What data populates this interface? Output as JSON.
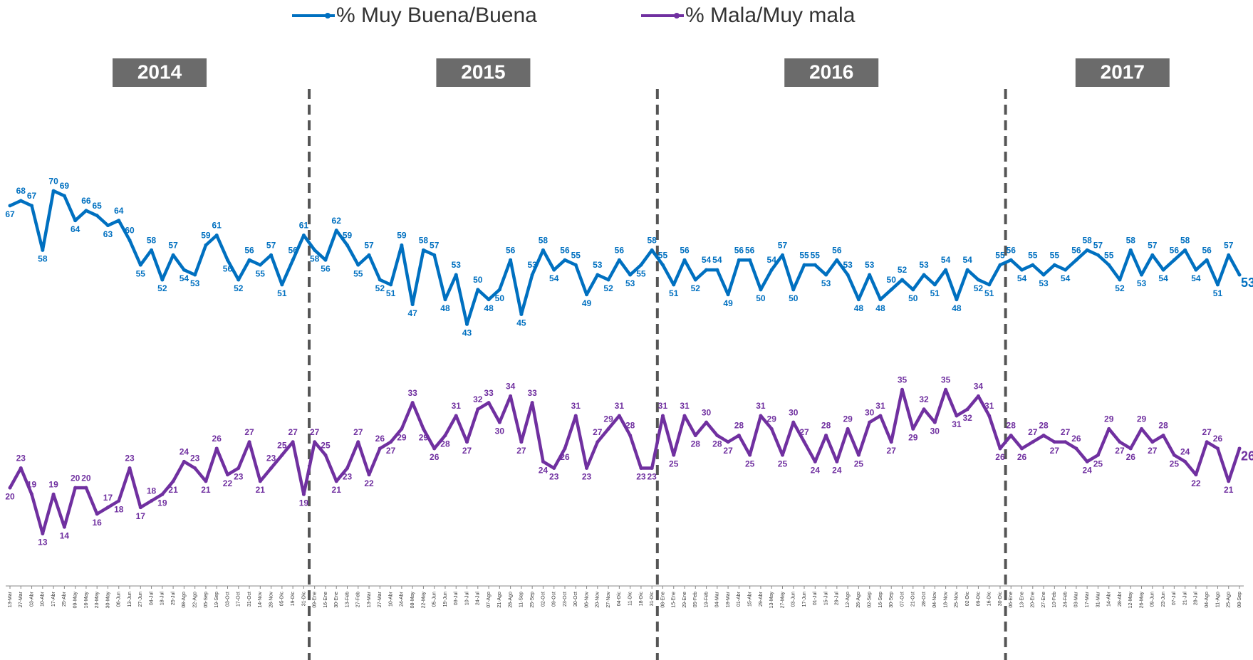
{
  "chart_data": {
    "type": "line",
    "legend": "top",
    "year_labels": [
      "2014",
      "2015",
      "2016",
      "2017"
    ],
    "ylim": [
      -10,
      100
    ],
    "y2lim": [
      5,
      88
    ],
    "categories": [
      "13-Mar",
      "27-Mar",
      "03-Abr",
      "10-Abr",
      "17-Abr",
      "25-Abr",
      "09-May",
      "16-May",
      "23-May",
      "30-May",
      "06-Jun",
      "13-Jun",
      "27-Jun",
      "04-Jul",
      "18-Jul",
      "25-Jul",
      "08-Ago",
      "22-Ago",
      "05-Sep",
      "19-Sep",
      "03-Oct",
      "17-Oct",
      "31-Oct",
      "14-Nov",
      "28-Nov",
      "05-Dic",
      "19-Dic",
      "31-Dic",
      "09-Ene",
      "16-Ene",
      "30-Ene",
      "13-Feb",
      "27-Feb",
      "13-Mar",
      "27-Mar",
      "10-Abr",
      "24-Abr",
      "08-May",
      "22-May",
      "05-Jun",
      "19-Jun",
      "03-Jul",
      "10-Jul",
      "24-Jul",
      "07-Ago",
      "21-Ago",
      "28-Ago",
      "11-Sep",
      "25-Sep",
      "02-Oct",
      "09-Oct",
      "23-Oct",
      "30-Oct",
      "06-Nov",
      "20-Nov",
      "27-Nov",
      "04-Dic",
      "11-Dic",
      "18-Dic",
      "31-Dic",
      "08-Ene",
      "15-Ene",
      "29-Ene",
      "05-Feb",
      "19-Feb",
      "04-Mar",
      "18-Mar",
      "01-Abr",
      "15-Abr",
      "29-Abr",
      "13-May",
      "27-May",
      "03-Jun",
      "17-Jun",
      "01-Jul",
      "15-Jul",
      "29-Jul",
      "12-Ago",
      "26-Ago",
      "02-Sep",
      "16-Sep",
      "30-Sep",
      "07-Oct",
      "21-Oct",
      "28-Oct",
      "04-Nov",
      "18-Nov",
      "25-Nov",
      "02-Dic",
      "09-Dic",
      "16-Dic",
      "30-Dic",
      "06-Ene",
      "13-Ene",
      "20-Ene",
      "27-Ene",
      "10-Feb",
      "24-Feb",
      "03-Mar",
      "17-Mar",
      "31-Mar",
      "14-Abr",
      "28-Abr",
      "12-May",
      "26-May",
      "09-Jun",
      "23-Jun",
      "07-Jul",
      "21-Jul",
      "28-Jul",
      "04-Ago",
      "11-Ago",
      "25-Ago",
      "08-Sep"
    ],
    "series": [
      {
        "name": "% Muy Buena/Buena",
        "color": "#0070c0",
        "values": [
          67,
          68,
          67,
          58,
          70,
          69,
          64,
          66,
          65,
          63,
          64,
          60,
          55,
          58,
          52,
          57,
          54,
          53,
          59,
          61,
          56,
          52,
          56,
          55,
          57,
          51,
          56,
          61,
          58,
          56,
          62,
          59,
          55,
          57,
          52,
          51,
          59,
          47,
          58,
          57,
          48,
          53,
          43,
          50,
          48,
          50,
          56,
          45,
          53,
          58,
          54,
          56,
          55,
          49,
          53,
          52,
          56,
          53,
          55,
          58,
          55,
          51,
          56,
          52,
          54,
          54,
          49,
          56,
          56,
          50,
          54,
          57,
          50,
          55,
          55,
          53,
          56,
          53,
          48,
          53,
          48,
          50,
          52,
          50,
          53,
          51,
          54,
          48,
          54,
          52,
          51,
          55,
          56,
          54,
          55,
          53,
          55,
          54,
          56,
          58,
          57,
          55,
          52,
          58,
          53,
          57,
          54,
          56,
          58,
          54,
          56,
          51,
          57,
          53
        ]
      },
      {
        "name": "% Mala/Muy mala",
        "color": "#7030a0",
        "axis": "y2",
        "values": [
          20,
          23,
          19,
          13,
          19,
          14,
          20,
          20,
          16,
          17,
          18,
          23,
          17,
          18,
          19,
          21,
          24,
          23,
          21,
          26,
          22,
          23,
          27,
          21,
          23,
          25,
          27,
          19,
          27,
          25,
          21,
          23,
          27,
          22,
          26,
          27,
          29,
          33,
          29,
          26,
          28,
          31,
          27,
          32,
          33,
          30,
          34,
          27,
          33,
          24,
          23,
          26,
          31,
          23,
          27,
          29,
          31,
          28,
          23,
          23,
          31,
          25,
          31,
          28,
          30,
          28,
          27,
          28,
          25,
          31,
          29,
          25,
          30,
          27,
          24,
          28,
          24,
          29,
          25,
          30,
          31,
          27,
          35,
          29,
          32,
          30,
          35,
          31,
          32,
          34,
          31,
          26,
          28,
          26,
          27,
          28,
          27,
          27,
          26,
          24,
          25,
          29,
          27,
          26,
          29,
          27,
          28,
          25,
          24,
          22,
          27,
          26,
          21,
          26
        ]
      }
    ]
  }
}
